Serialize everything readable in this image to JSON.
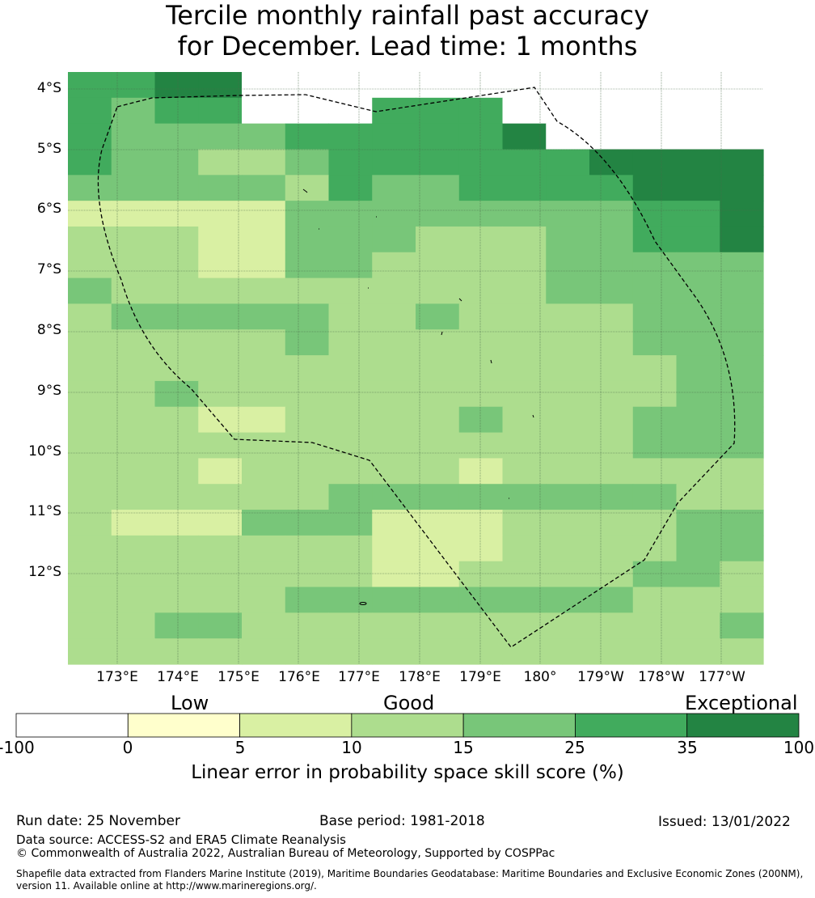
{
  "title": {
    "line1": "Tercile monthly rainfall past accuracy",
    "line2": "for December. Lead time: 1 months"
  },
  "map": {
    "lat_labels": [
      "4°S",
      "5°S",
      "6°S",
      "7°S",
      "8°S",
      "9°S",
      "10°S",
      "11°S",
      "12°S"
    ],
    "lon_labels": [
      "173°E",
      "174°E",
      "175°E",
      "176°E",
      "177°E",
      "178°E",
      "179°E",
      "180°",
      "179°W",
      "178°W",
      "177°W"
    ],
    "grid_rows": [
      "5566777777777777",
      "5455777555777777",
      "5444455555677777",
      "5443345555556666",
      "4444435445555666",
      "2222244444444556",
      "3332244433344556",
      "3332244333344444",
      "4333333333344444",
      "3444443343333444",
      "3333343333333444",
      "3333333333333344",
      "3343333333333344",
      "3332233334333444",
      "3333333333333444",
      "3332333332333333",
      "3333334444444433",
      "3222444222333344",
      "3333333222333344",
      "3333333223333443",
      "3333344444444333",
      "3344333333333334",
      "3333333333333333"
    ],
    "grid_cols": 16,
    "grid_rows_count": 23,
    "boundary": "dashed EEZ outline"
  },
  "legend": {
    "categories": [
      "Low",
      "Good",
      "Exceptional"
    ],
    "ticks": [
      "-100",
      "0",
      "5",
      "10",
      "15",
      "25",
      "35",
      "100"
    ],
    "colors": [
      "#ffffff",
      "#ffffcc",
      "#d9f0a3",
      "#addd8e",
      "#78c679",
      "#41ab5d",
      "#238443"
    ],
    "caption": "Linear error in probability space skill score (%)"
  },
  "footer": {
    "run_date": "Run date: 25 November",
    "base_period": "Base period: 1981-2018",
    "issued": "Issued: 13/01/2022",
    "data_source": "Data source: ACCESS-S2 and ERA5 Climate Reanalysis",
    "copyright": "© Commonwealth of Australia 2022, Australian Bureau of Meteorology, Supported by COSPPac",
    "shapefile_line1": "Shapefile data extracted from Flanders Marine Institute (2019), Maritime Boundaries Geodatabase: Maritime Boundaries and Exclusive Economic Zones (200NM),",
    "shapefile_line2": "version 11. Available online at http://www.marineregions.org/."
  }
}
